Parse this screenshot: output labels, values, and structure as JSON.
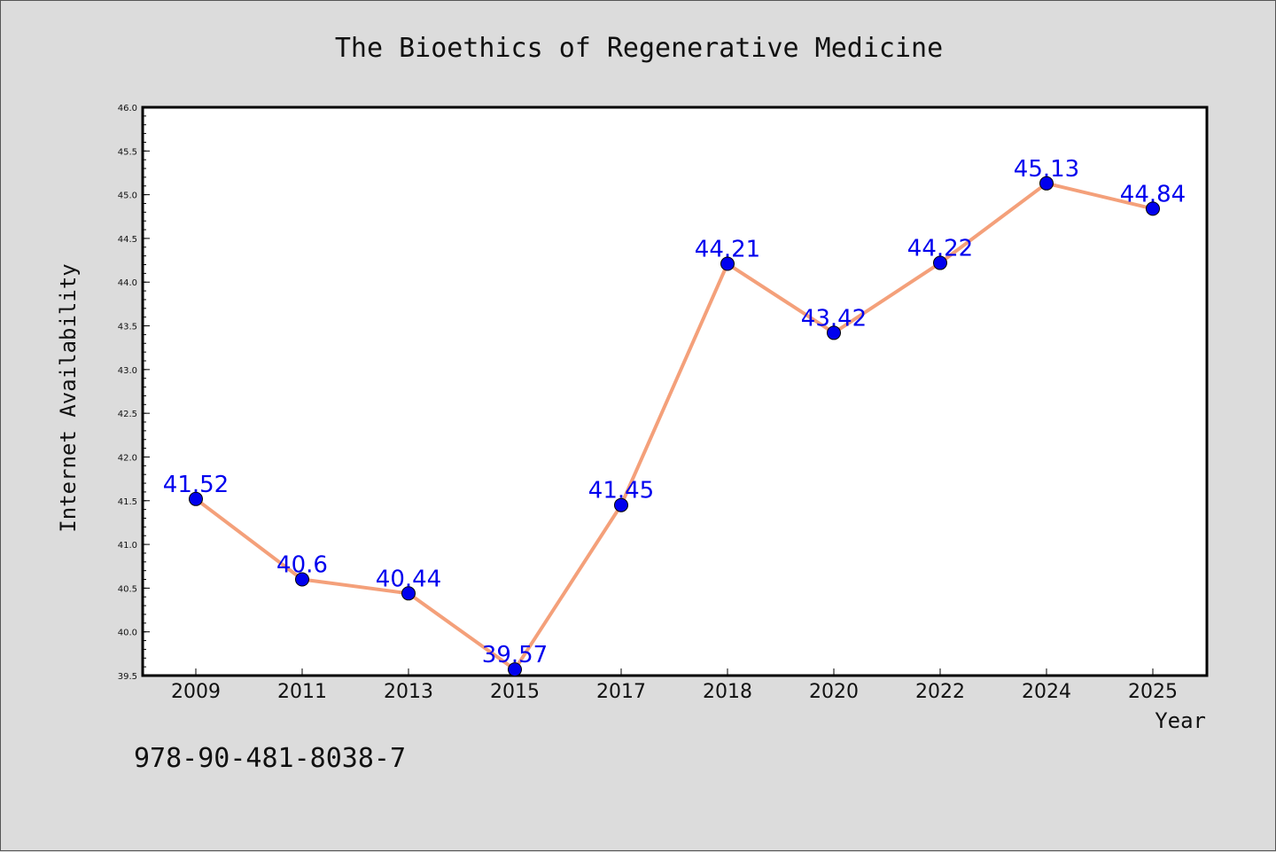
{
  "chart_data": {
    "type": "line",
    "title": "The Bioethics of Regenerative Medicine",
    "xlabel": "Year",
    "ylabel": "Internet Availability",
    "categories": [
      "2009",
      "2011",
      "2013",
      "2015",
      "2017",
      "2018",
      "2020",
      "2022",
      "2024",
      "2025"
    ],
    "series": [
      {
        "values": [
          41.52,
          40.6,
          40.44,
          39.57,
          41.45,
          44.21,
          43.42,
          44.22,
          45.13,
          44.84
        ],
        "value_labels": [
          "41.52",
          "40.6",
          "40.44",
          "39.57",
          "41.45",
          "44.21",
          "43.42",
          "44.22",
          "45.13",
          "44.84"
        ]
      }
    ],
    "ylim": [
      39.5,
      46.0
    ],
    "yticks": [
      "39.5",
      "40.0",
      "40.5",
      "41.0",
      "41.5",
      "42.0",
      "42.5",
      "43.0",
      "43.5",
      "44.0",
      "44.5",
      "45.0",
      "45.5",
      "46.0"
    ],
    "grid": false,
    "legend": "none",
    "colors": {
      "line": "#f4a07a",
      "marker": "#0000ee",
      "label": "#0000ee",
      "background": "#dcdcdc",
      "plot_area": "#ffffff"
    }
  },
  "footer": {
    "code": "978-90-481-8038-7"
  }
}
